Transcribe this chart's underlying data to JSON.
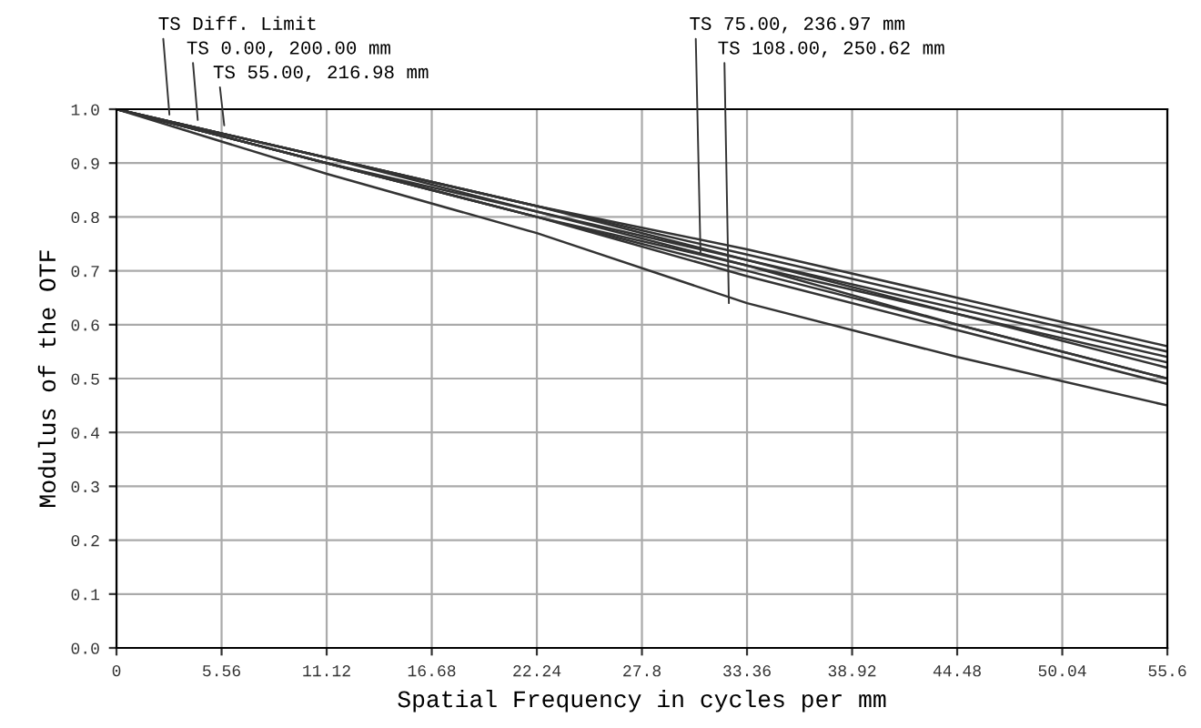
{
  "chart_data": {
    "type": "line",
    "xlabel": "Spatial Frequency in cycles per mm",
    "ylabel": "Modulus of the OTF",
    "x": [
      0,
      11.12,
      22.24,
      33.36,
      44.48,
      55.6
    ],
    "series": [
      {
        "color": "#333333",
        "values": [
          1.0,
          0.91,
          0.82,
          0.74,
          0.65,
          0.56
        ]
      },
      {
        "color": "#333333",
        "values": [
          1.0,
          0.91,
          0.82,
          0.73,
          0.64,
          0.55
        ]
      },
      {
        "color": "#333333",
        "values": [
          1.0,
          0.91,
          0.82,
          0.72,
          0.63,
          0.54
        ]
      },
      {
        "color": "#333333",
        "values": [
          1.0,
          0.91,
          0.81,
          0.72,
          0.62,
          0.53
        ]
      },
      {
        "color": "#333333",
        "values": [
          1.0,
          0.9,
          0.81,
          0.71,
          0.62,
          0.52
        ]
      },
      {
        "color": "#333333",
        "values": [
          1.0,
          0.9,
          0.8,
          0.7,
          0.6,
          0.5
        ]
      },
      {
        "color": "#333333",
        "values": [
          1.0,
          0.9,
          0.8,
          0.71,
          0.6,
          0.5
        ]
      },
      {
        "color": "#333333",
        "values": [
          1.0,
          0.9,
          0.8,
          0.69,
          0.59,
          0.49
        ]
      },
      {
        "color": "#333333",
        "values": [
          1.0,
          0.88,
          0.77,
          0.64,
          0.54,
          0.45
        ]
      }
    ],
    "annotations": [
      {
        "text": "TS Diff. Limit",
        "x": 2.8,
        "y": 0.99
      },
      {
        "text": "TS 0.00, 200.00 mm",
        "x": 4.3,
        "y": 0.98
      },
      {
        "text": "TS 55.00, 216.98 mm",
        "x": 5.7,
        "y": 0.97
      },
      {
        "text": "TS 75.00, 236.97 mm",
        "x": 30.9,
        "y": 0.73
      },
      {
        "text": "TS 108.00, 250.62 mm",
        "x": 32.4,
        "y": 0.64
      }
    ],
    "xlim": [
      0,
      55.6
    ],
    "xticks": [
      0,
      5.56,
      11.12,
      16.68,
      22.24,
      27.8,
      33.36,
      38.92,
      44.48,
      50.04,
      55.6
    ],
    "ylim": [
      0,
      1
    ],
    "yticks": [
      {
        "value": 0,
        "label": "0.0"
      },
      0.1,
      0.2,
      0.3,
      0.4,
      0.5,
      0.6,
      0.7,
      0.8,
      0.9,
      {
        "value": 1,
        "label": "1.0"
      }
    ],
    "grid": true,
    "marker": "none",
    "line_style": "solid",
    "legend": false
  }
}
